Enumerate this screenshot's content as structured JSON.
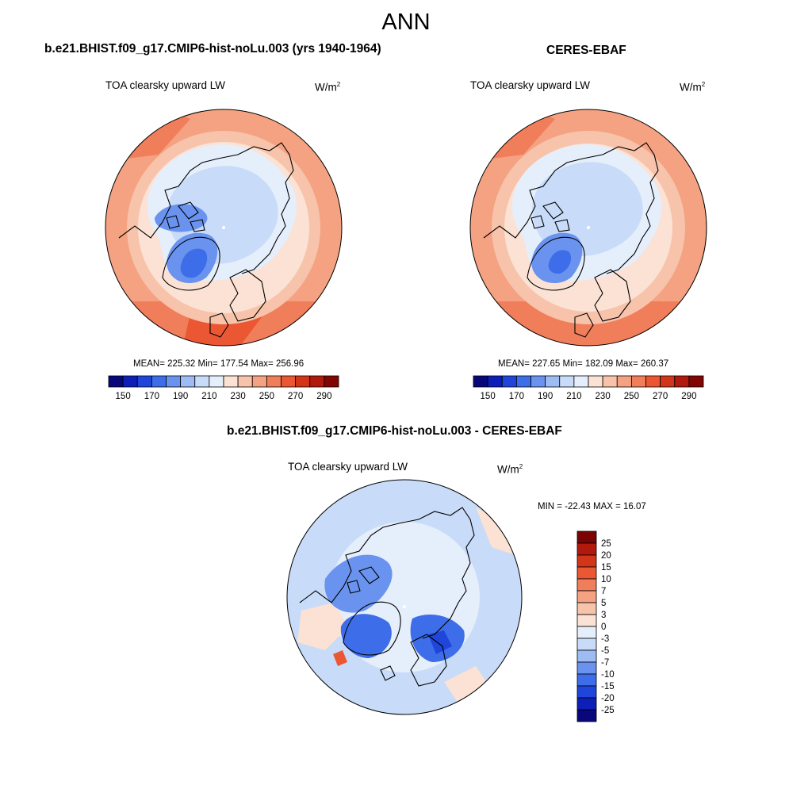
{
  "figure": {
    "title": "ANN"
  },
  "panels": {
    "model": {
      "title": "b.e21.BHIST.f09_g17.CMIP6-hist-noLu.003 (yrs 1940-1964)",
      "variable": "TOA clearsky upward LW",
      "units": "W/m",
      "units_sup": "2",
      "stats": "MEAN= 225.32  Min= 177.54  Max= 256.96",
      "mean": 225.32,
      "min": 177.54,
      "max": 256.96
    },
    "obs": {
      "title": "CERES-EBAF",
      "variable": "TOA clearsky upward LW",
      "units": "W/m",
      "units_sup": "2",
      "stats": "MEAN= 227.65  Min= 182.09  Max= 260.37",
      "mean": 227.65,
      "min": 182.09,
      "max": 260.37
    },
    "diff": {
      "title": "b.e21.BHIST.f09_g17.CMIP6-hist-noLu.003 - CERES-EBAF",
      "variable": "TOA clearsky upward LW",
      "units": "W/m",
      "units_sup": "2",
      "stats": "MIN = -22.43 MAX =  16.07",
      "min": -22.43,
      "max": 16.07
    }
  },
  "colorbar_abs": {
    "ticks": [
      "150",
      "170",
      "190",
      "210",
      "230",
      "250",
      "270",
      "290"
    ],
    "colors": [
      "#08087a",
      "#0e1fb8",
      "#1f45db",
      "#3d6de8",
      "#6a93ef",
      "#9ebcf4",
      "#c8dbf8",
      "#e5eefb",
      "#fbe2d4",
      "#f7c3aa",
      "#f4a282",
      "#f17e5a",
      "#eb5733",
      "#d33519",
      "#b0190c",
      "#800503"
    ]
  },
  "colorbar_diff": {
    "labels": [
      "25",
      "20",
      "15",
      "10",
      "7",
      "5",
      "3",
      "0",
      "-3",
      "-5",
      "-7",
      "-10",
      "-15",
      "-20",
      "-25"
    ],
    "colors": [
      "#7a0403",
      "#b0190c",
      "#d33519",
      "#eb5733",
      "#f17e5a",
      "#f4a282",
      "#f7c3aa",
      "#fbe2d4",
      "#e5eefb",
      "#c8dbf8",
      "#9ebcf4",
      "#6a93ef",
      "#3d6de8",
      "#1f45db",
      "#0e1fb8",
      "#08087a"
    ]
  }
}
